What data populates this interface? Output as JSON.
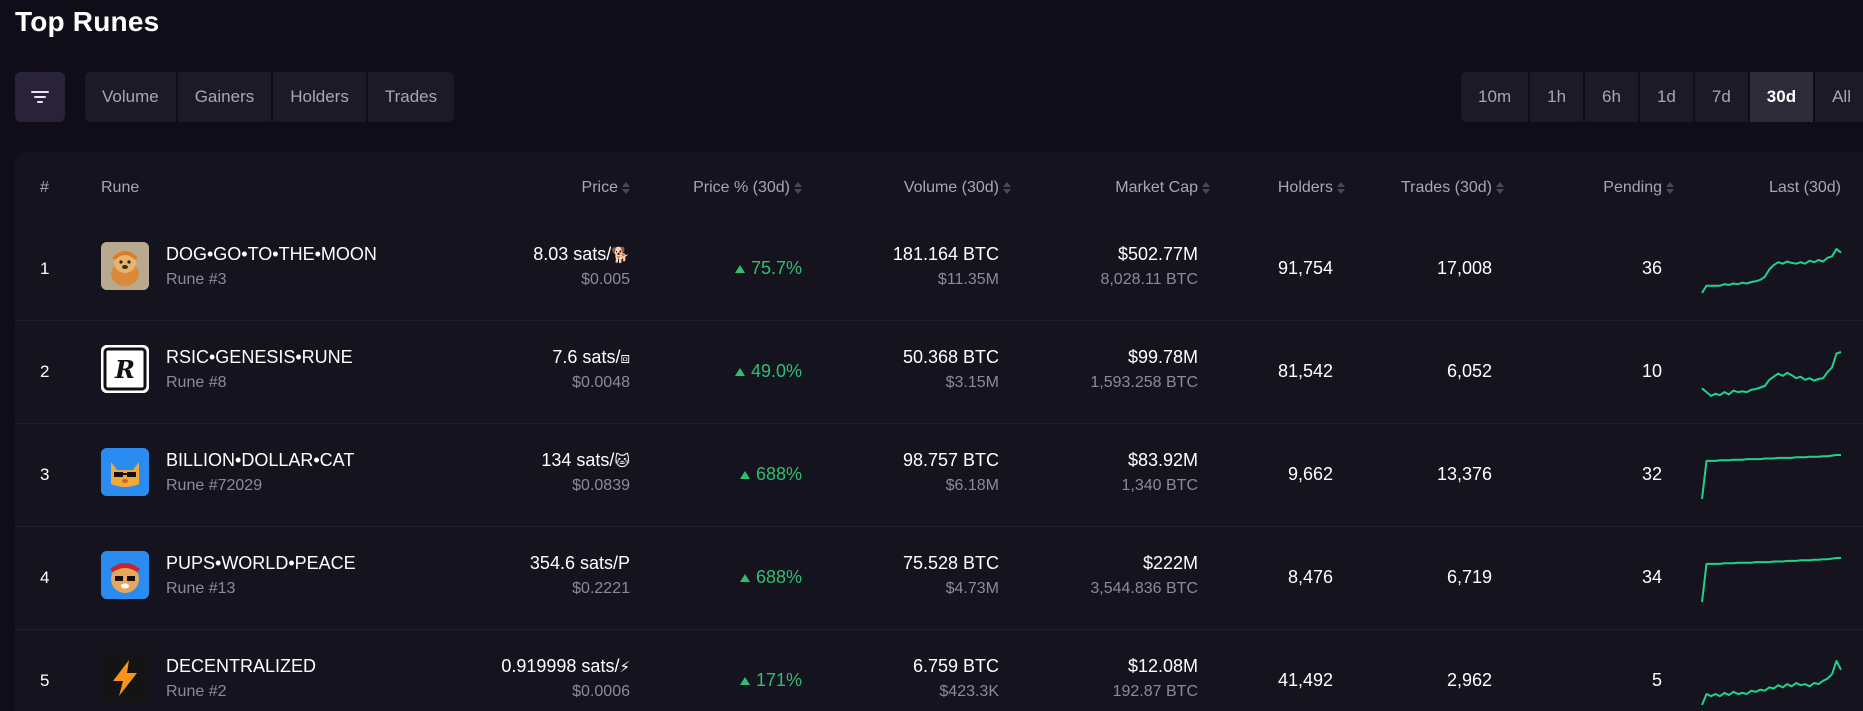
{
  "page_title": "Top Runes",
  "colors": {
    "background": "#0f0d17",
    "panel": "#15131e",
    "tab_bg": "#1c1a25",
    "active_tab": "#2e2b39",
    "positive": "#2fbf71",
    "sparkline": "#1fd389",
    "muted_text": "#8d8a97"
  },
  "filter_button": {
    "icon": "filter-lines-icon"
  },
  "sort_tabs": [
    {
      "label": "Volume"
    },
    {
      "label": "Gainers"
    },
    {
      "label": "Holders"
    },
    {
      "label": "Trades"
    }
  ],
  "time_tabs": [
    {
      "label": "10m",
      "active": false
    },
    {
      "label": "1h",
      "active": false
    },
    {
      "label": "6h",
      "active": false
    },
    {
      "label": "1d",
      "active": false
    },
    {
      "label": "7d",
      "active": false
    },
    {
      "label": "30d",
      "active": true
    },
    {
      "label": "All",
      "active": false
    }
  ],
  "table": {
    "headers": {
      "rank": "#",
      "rune": "Rune",
      "price": "Price",
      "price_pct": "Price % (30d)",
      "volume": "Volume (30d)",
      "market_cap": "Market Cap",
      "holders": "Holders",
      "trades": "Trades (30d)",
      "pending": "Pending",
      "last": "Last (30d)"
    },
    "rows": [
      {
        "rank": "1",
        "name": "DOG•GO•TO•THE•MOON",
        "rune_number": "Rune #3",
        "icon": "dog-avatar-icon",
        "price_sats": "8.03 sats/",
        "price_symbol": "🐕",
        "price_usd": "$0.005",
        "price_pct": "75.7%",
        "volume_btc": "181.164 BTC",
        "volume_usd": "$11.35M",
        "market_cap_usd": "$502.77M",
        "market_cap_btc": "8,028.11 BTC",
        "holders": "91,754",
        "trades": "17,008",
        "pending": "36",
        "sparkline": [
          2,
          3,
          3,
          3,
          3,
          3.2,
          3.1,
          3.3,
          3.2,
          3.4,
          3.3,
          3.5,
          3.6,
          3.8,
          4.2,
          5.2,
          5.8,
          6.2,
          6.0,
          6.3,
          6.1,
          6.0,
          6.2,
          6.0,
          6.4,
          6.2,
          6.5,
          6.3,
          6.8,
          7.0,
          8.0,
          7.5
        ]
      },
      {
        "rank": "2",
        "name": "RSIC•GENESIS•RUNE",
        "rune_number": "Rune #8",
        "icon": "rsic-r-logo-icon",
        "price_sats": "7.6 sats/",
        "price_symbol": "⧈",
        "price_usd": "$0.0048",
        "price_pct": "49.0%",
        "volume_btc": "50.368 BTC",
        "volume_usd": "$3.15M",
        "market_cap_usd": "$99.78M",
        "market_cap_btc": "1,593.258 BTC",
        "holders": "81,542",
        "trades": "6,052",
        "pending": "10",
        "sparkline": [
          3.5,
          3,
          2.5,
          2.8,
          2.6,
          3.0,
          2.7,
          3.2,
          3.0,
          3.1,
          3.0,
          3.3,
          3.4,
          3.6,
          3.8,
          4.6,
          5.0,
          5.4,
          5.1,
          5.5,
          5.2,
          4.8,
          5.0,
          4.6,
          4.8,
          4.5,
          4.7,
          4.8,
          5.6,
          6.2,
          8.0,
          8.2
        ]
      },
      {
        "rank": "3",
        "name": "BILLION•DOLLAR•CAT",
        "rune_number": "Rune #72029",
        "icon": "cat-avatar-icon",
        "price_sats": "134 sats/",
        "price_symbol": "🐱",
        "price_usd": "$0.0839",
        "price_pct": "688%",
        "volume_btc": "98.757 BTC",
        "volume_usd": "$6.18M",
        "market_cap_usd": "$83.92M",
        "market_cap_btc": "1,340 BTC",
        "holders": "9,662",
        "trades": "13,376",
        "pending": "32",
        "sparkline": [
          0.5,
          7.0,
          7.0,
          7.0,
          7.1,
          7.1,
          7.1,
          7.2,
          7.2,
          7.2,
          7.3,
          7.3,
          7.3,
          7.3,
          7.4,
          7.4,
          7.4,
          7.5,
          7.5,
          7.5,
          7.5,
          7.6,
          7.6,
          7.6,
          7.7,
          7.7,
          7.7,
          7.8,
          7.8,
          7.9,
          8.0,
          8.0
        ]
      },
      {
        "rank": "4",
        "name": "PUPS•WORLD•PEACE",
        "rune_number": "Rune #13",
        "icon": "pups-avatar-icon",
        "price_sats": "354.6 sats/",
        "price_symbol": "P",
        "price_usd": "$0.2221",
        "price_pct": "688%",
        "volume_btc": "75.528 BTC",
        "volume_usd": "$4.73M",
        "market_cap_usd": "$222M",
        "market_cap_btc": "3,544.836 BTC",
        "holders": "8,476",
        "trades": "6,719",
        "pending": "34",
        "sparkline": [
          0.5,
          7.0,
          7.0,
          7.0,
          7.0,
          7.1,
          7.1,
          7.1,
          7.2,
          7.2,
          7.2,
          7.2,
          7.3,
          7.3,
          7.3,
          7.3,
          7.4,
          7.4,
          7.4,
          7.5,
          7.5,
          7.5,
          7.6,
          7.6,
          7.6,
          7.7,
          7.7,
          7.8,
          7.8,
          7.9,
          8.0,
          8.0
        ]
      },
      {
        "rank": "5",
        "name": "DECENTRALIZED",
        "rune_number": "Rune #2",
        "icon": "lightning-bolt-icon",
        "price_sats": "0.919998 sats/",
        "price_symbol": "⚡",
        "price_usd": "$0.0006",
        "price_pct": "171%",
        "volume_btc": "6.759 BTC",
        "volume_usd": "$423.3K",
        "market_cap_usd": "$12.08M",
        "market_cap_btc": "192.87 BTC",
        "holders": "41,492",
        "trades": "2,962",
        "pending": "5",
        "sparkline": [
          3.0,
          4.0,
          3.8,
          4.0,
          3.8,
          4.1,
          3.9,
          4.2,
          4.0,
          4.1,
          4.0,
          4.3,
          4.2,
          4.4,
          4.3,
          4.6,
          4.5,
          4.8,
          4.6,
          4.9,
          4.7,
          5.0,
          4.8,
          4.9,
          4.7,
          5.0,
          4.9,
          5.2,
          5.4,
          5.8,
          7.0,
          6.2
        ]
      }
    ]
  }
}
